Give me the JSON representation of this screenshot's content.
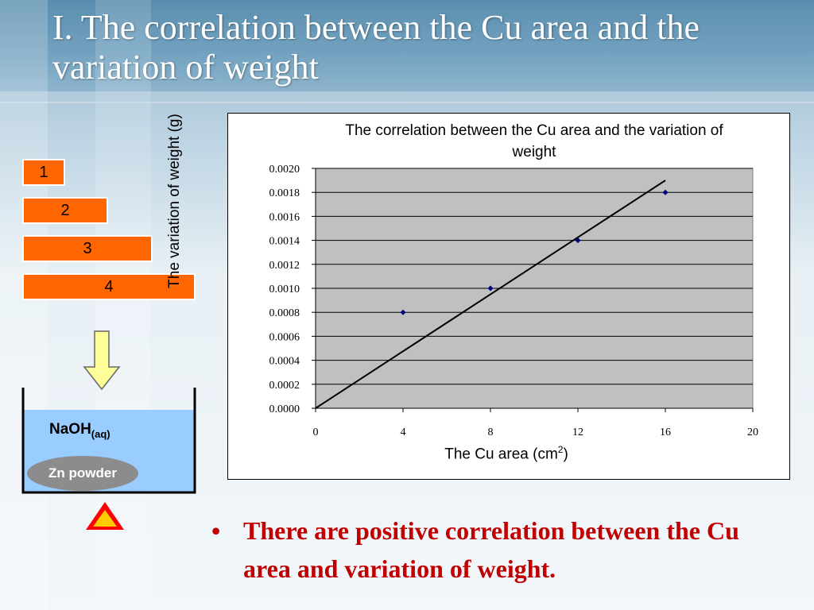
{
  "slide": {
    "title": "I. The correlation between the Cu area and the variation of weight"
  },
  "diagram": {
    "strips": [
      "1",
      "2",
      "3",
      "4"
    ],
    "solution_label": "NaOH",
    "solution_subscript": "(aq)",
    "powder_label": "Zn powder",
    "colors": {
      "strip": "#ff6600",
      "liquid": "#99ccff",
      "arrow": "#ffff99",
      "heat_outer": "#ff0000",
      "heat_inner": "#ffcc00"
    }
  },
  "chart_data": {
    "type": "scatter",
    "title": "The correlation between the Cu area and the variation of weight",
    "xlabel": "The Cu area (cm",
    "xlabel_sup": "2",
    "xlabel_end": ")",
    "ylabel": "The variation of weight (g)",
    "xlim": [
      0,
      20
    ],
    "ylim": [
      0,
      0.002
    ],
    "xticks": [
      "0",
      "4",
      "8",
      "12",
      "16",
      "20"
    ],
    "yticks": [
      "0.0000",
      "0.0002",
      "0.0004",
      "0.0006",
      "0.0008",
      "0.0010",
      "0.0012",
      "0.0014",
      "0.0016",
      "0.0018",
      "0.0020"
    ],
    "points": [
      {
        "x": 4,
        "y": 0.0008
      },
      {
        "x": 8,
        "y": 0.001
      },
      {
        "x": 12,
        "y": 0.0014
      },
      {
        "x": 16,
        "y": 0.0018
      }
    ],
    "trendline": {
      "x0": 0,
      "y0": 0,
      "x1": 16,
      "y1": 0.0019
    },
    "grid": true,
    "legend": "none",
    "colors": {
      "plot_bg": "#c0c0c0",
      "marker": "#000080",
      "line": "#000000"
    }
  },
  "bullet": {
    "marker": "•",
    "text": "There are positive correlation between the Cu area and variation of weight."
  }
}
